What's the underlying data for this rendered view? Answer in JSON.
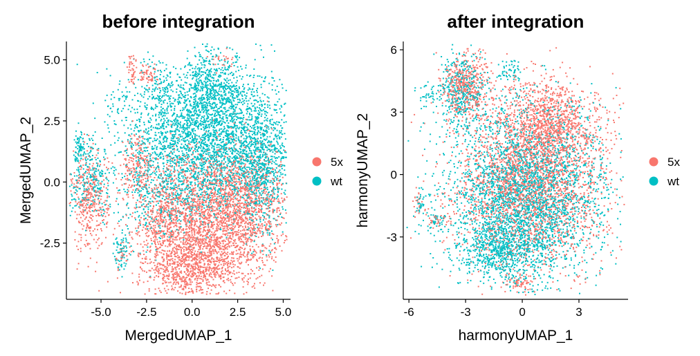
{
  "chart_data": [
    {
      "type": "scatter",
      "title": "before integration",
      "xlabel": "MergedUMAP_1",
      "ylabel": "MergedUMAP_2",
      "xlim": [
        -6.9,
        5.4
      ],
      "ylim": [
        -4.8,
        5.75
      ],
      "xticks": [
        -5.0,
        -2.5,
        0.0,
        2.5,
        5.0
      ],
      "yticks": [
        -2.5,
        0.0,
        2.5,
        5.0
      ],
      "xtick_labels": [
        "-5.0",
        "-2.5",
        "0.0",
        "2.5",
        "5.0"
      ],
      "ytick_labels": [
        "-2.5",
        "0.0",
        "2.5",
        "5.0"
      ],
      "legend_position": "right",
      "series": [
        {
          "name": "5x",
          "color": "#F8766D",
          "clusters": [
            {
              "cx": 1.0,
              "cy": -1.5,
              "sx": 1.9,
              "sy": 1.4,
              "n": 2400
            },
            {
              "cx": 0.0,
              "cy": -3.5,
              "sx": 1.3,
              "sy": 0.6,
              "n": 700
            },
            {
              "cx": 3.2,
              "cy": -0.8,
              "sx": 1.0,
              "sy": 1.2,
              "n": 500
            },
            {
              "cx": -5.6,
              "cy": -0.8,
              "sx": 0.5,
              "sy": 1.0,
              "n": 380
            },
            {
              "cx": -3.0,
              "cy": 0.6,
              "sx": 0.45,
              "sy": 0.7,
              "n": 200
            },
            {
              "cx": -1.5,
              "cy": -1.6,
              "sx": 0.6,
              "sy": 1.0,
              "n": 260
            },
            {
              "cx": -2.4,
              "cy": 4.4,
              "sx": 0.3,
              "sy": 0.2,
              "n": 60
            },
            {
              "cx": -3.3,
              "cy": 4.6,
              "sx": 0.1,
              "sy": 0.35,
              "n": 40
            },
            {
              "cx": 1.5,
              "cy": 5.0,
              "sx": 0.4,
              "sy": 0.2,
              "n": 25
            },
            {
              "cx": -3.9,
              "cy": -3.0,
              "sx": 0.15,
              "sy": 0.3,
              "n": 20
            }
          ]
        },
        {
          "name": "wt",
          "color": "#00BFC4",
          "clusters": [
            {
              "cx": 0.8,
              "cy": 2.0,
              "sx": 2.2,
              "sy": 1.3,
              "n": 2600
            },
            {
              "cx": 1.2,
              "cy": 4.0,
              "sx": 0.9,
              "sy": 0.8,
              "n": 450
            },
            {
              "cx": 3.8,
              "cy": 0.5,
              "sx": 0.8,
              "sy": 1.4,
              "n": 700
            },
            {
              "cx": -5.5,
              "cy": 0.0,
              "sx": 0.6,
              "sy": 0.7,
              "n": 260
            },
            {
              "cx": -6.2,
              "cy": 1.5,
              "sx": 0.15,
              "sy": 0.3,
              "n": 60
            },
            {
              "cx": -1.7,
              "cy": 4.0,
              "sx": 0.4,
              "sy": 0.5,
              "n": 70
            },
            {
              "cx": -3.9,
              "cy": -2.8,
              "sx": 0.2,
              "sy": 0.4,
              "n": 70
            },
            {
              "cx": -2.0,
              "cy": -0.5,
              "sx": 1.0,
              "sy": 1.2,
              "n": 250
            },
            {
              "cx": -4.3,
              "cy": 3.0,
              "sx": 0.3,
              "sy": 0.6,
              "n": 25
            },
            {
              "cx": 0.5,
              "cy": -0.4,
              "sx": 1.6,
              "sy": 0.8,
              "n": 400
            }
          ]
        }
      ]
    },
    {
      "type": "scatter",
      "title": "after integration",
      "xlabel": "harmonyUMAP_1",
      "ylabel": "harmonyUMAP_2",
      "xlim": [
        -6.3,
        5.6
      ],
      "ylim": [
        -6.0,
        6.4
      ],
      "xticks": [
        -6,
        -3,
        0,
        3
      ],
      "yticks": [
        -3,
        0,
        3,
        6
      ],
      "xtick_labels": [
        "-6",
        "-3",
        "0",
        "3"
      ],
      "ytick_labels": [
        "-3",
        "0",
        "3",
        "6"
      ],
      "legend_position": "right",
      "series": [
        {
          "name": "5x",
          "color": "#F8766D",
          "clusters": [
            {
              "cx": 0.5,
              "cy": -0.3,
              "sx": 2.0,
              "sy": 2.0,
              "n": 2600
            },
            {
              "cx": 1.5,
              "cy": 2.6,
              "sx": 1.2,
              "sy": 0.9,
              "n": 800
            },
            {
              "cx": -3.0,
              "cy": 4.2,
              "sx": 0.6,
              "sy": 0.8,
              "n": 500
            },
            {
              "cx": -0.1,
              "cy": -5.2,
              "sx": 0.35,
              "sy": 0.2,
              "n": 60
            },
            {
              "cx": -5.5,
              "cy": -1.4,
              "sx": 0.15,
              "sy": 0.3,
              "n": 20
            },
            {
              "cx": -4.4,
              "cy": -2.2,
              "sx": 0.35,
              "sy": 0.2,
              "n": 30
            }
          ]
        },
        {
          "name": "wt",
          "color": "#00BFC4",
          "clusters": [
            {
              "cx": 0.2,
              "cy": -0.8,
              "sx": 2.1,
              "sy": 2.0,
              "n": 3000
            },
            {
              "cx": -1.0,
              "cy": -3.5,
              "sx": 1.2,
              "sy": 0.8,
              "n": 700
            },
            {
              "cx": -3.2,
              "cy": 4.0,
              "sx": 0.6,
              "sy": 0.9,
              "n": 400
            },
            {
              "cx": -0.6,
              "cy": 5.0,
              "sx": 0.4,
              "sy": 0.3,
              "n": 50
            },
            {
              "cx": -4.8,
              "cy": 3.9,
              "sx": 0.4,
              "sy": 0.3,
              "n": 40
            },
            {
              "cx": -5.4,
              "cy": -1.5,
              "sx": 0.15,
              "sy": 0.3,
              "n": 25
            },
            {
              "cx": -4.5,
              "cy": -2.2,
              "sx": 0.35,
              "sy": 0.2,
              "n": 30
            }
          ]
        }
      ]
    }
  ]
}
